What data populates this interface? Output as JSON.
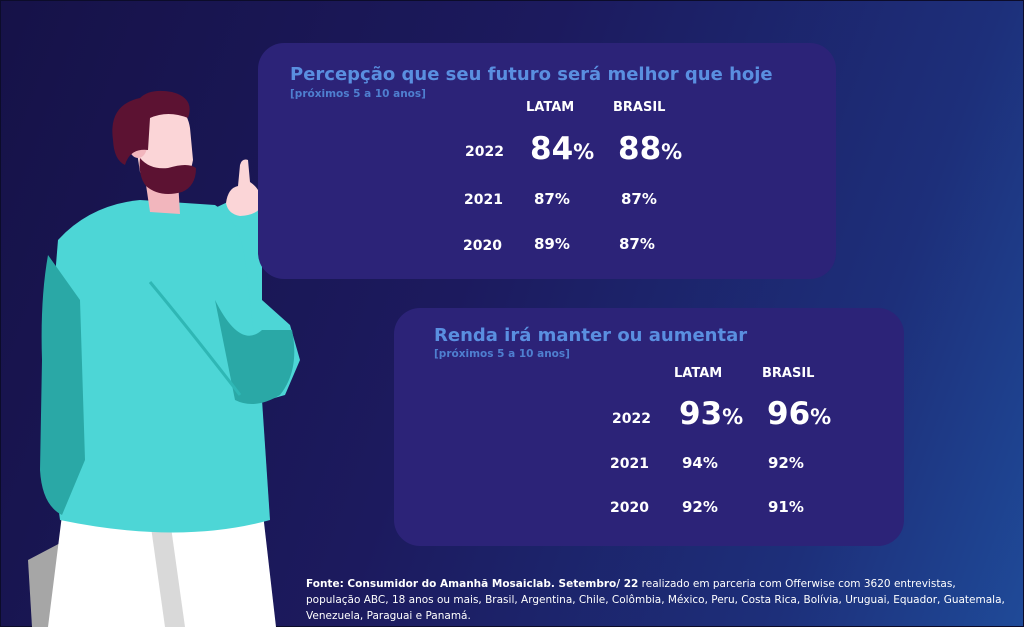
{
  "card1": {
    "title": "Percepção que seu futuro será melhor que hoje",
    "subtitle": "[próximos 5 a 10 anos]",
    "col1": "LATAM",
    "col2": "BRASIL",
    "rows": [
      {
        "year": "2022",
        "latam": "84",
        "brasil": "88"
      },
      {
        "year": "2021",
        "latam": "87%",
        "brasil": "87%"
      },
      {
        "year": "2020",
        "latam": "89%",
        "brasil": "87%"
      }
    ]
  },
  "card2": {
    "title": "Renda irá manter ou aumentar",
    "subtitle": "[próximos 5 a 10 anos]",
    "col1": "LATAM",
    "col2": "BRASIL",
    "rows": [
      {
        "year": "2022",
        "latam": "93",
        "brasil": "96"
      },
      {
        "year": "2021",
        "latam": "94%",
        "brasil": "92%"
      },
      {
        "year": "2020",
        "latam": "92%",
        "brasil": "91%"
      }
    ]
  },
  "pct_sign": "%",
  "footnote": {
    "bold": "Fonte: Consumidor do Amanhã Mosaiclab. Setembro/ 22",
    "rest": " realizado em parceria com Offerwise com 3620 entrevistas, população ABC, 18 anos ou mais, Brasil, Argentina, Chile, Colômbia, México, Peru, Costa Rica, Bolívia, Uruguai, Equador, Guatemala, Venezuela, Paraguai e Panamá."
  },
  "colors": {
    "card_bg": "#2c2378",
    "title": "#5a8fe0",
    "shirt": "#4dd6d6",
    "shirt_shadow": "#2aa8a6",
    "hair": "#5c1232",
    "skin": "#fbd5d7"
  },
  "illustration": "person-thinking"
}
